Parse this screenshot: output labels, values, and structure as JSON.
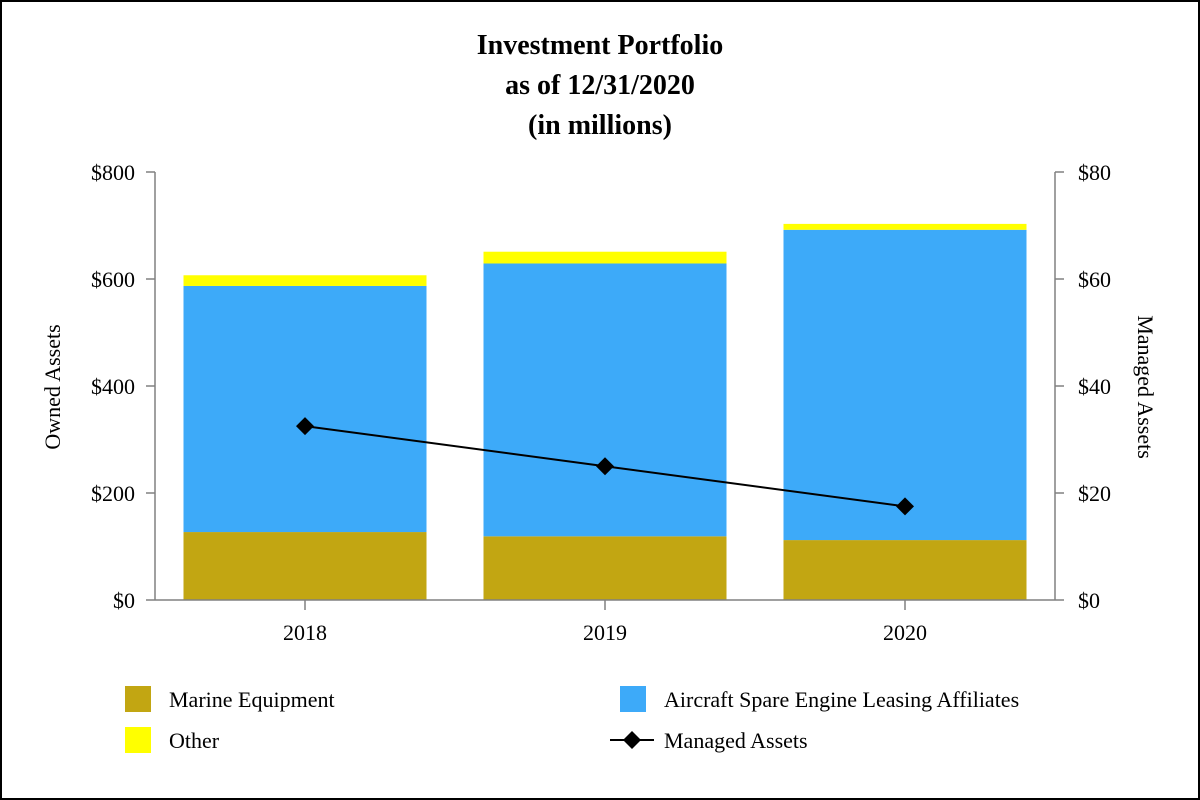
{
  "chart_data": {
    "type": "bar",
    "stacked": true,
    "title": [
      "Investment Portfolio",
      "as of 12/31/2020",
      "(in millions)"
    ],
    "categories": [
      "2018",
      "2019",
      "2020"
    ],
    "series": [
      {
        "name": "Marine Equipment",
        "axis": "left",
        "color": "#C2A612",
        "values": [
          127,
          119,
          112
        ]
      },
      {
        "name": "Aircraft Spare Engine Leasing Affiliates",
        "axis": "left",
        "color": "#3DAAF9",
        "values": [
          460,
          510,
          580
        ]
      },
      {
        "name": "Other",
        "axis": "left",
        "color": "#FFFF00",
        "values": [
          20,
          22,
          11
        ]
      }
    ],
    "line_series": [
      {
        "name": "Managed Assets",
        "axis": "right",
        "color": "#000000",
        "marker": "diamond",
        "values": [
          32.5,
          25,
          17.5
        ]
      }
    ],
    "ylabel": "Owned Assets",
    "y2label": "Managed Assets",
    "ylim": [
      0,
      800
    ],
    "y2lim": [
      0,
      80
    ],
    "yticks": [
      "$0",
      "$200",
      "$400",
      "$600",
      "$800"
    ],
    "y2ticks": [
      "$0",
      "$20",
      "$40",
      "$60",
      "$80"
    ],
    "grid": false,
    "legend_position": "bottom"
  },
  "legend": [
    {
      "label": "Marine Equipment",
      "kind": "box",
      "color": "#C2A612"
    },
    {
      "label": "Aircraft Spare Engine Leasing Affiliates",
      "kind": "box",
      "color": "#3DAAF9"
    },
    {
      "label": "Other",
      "kind": "box",
      "color": "#FFFF00"
    },
    {
      "label": "Managed Assets",
      "kind": "line-diamond",
      "color": "#000000"
    }
  ]
}
